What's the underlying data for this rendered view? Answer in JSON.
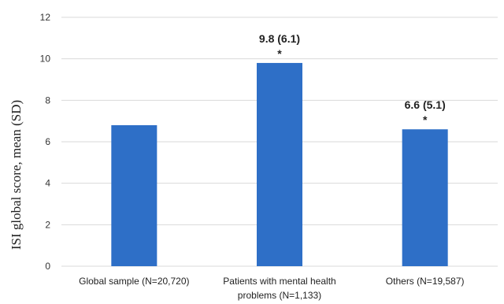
{
  "chart_data": {
    "type": "bar",
    "ylabel": "ISI global score, mean (SD)",
    "ylim": [
      0,
      12
    ],
    "yticks": [
      0,
      2,
      4,
      6,
      8,
      10,
      12
    ],
    "grid": true,
    "bar_color": "#2e6fc7",
    "categories": [
      {
        "lines": [
          "Global sample (N=20,720)"
        ]
      },
      {
        "lines": [
          "Patients with mental health",
          "problems (N=1,133)"
        ]
      },
      {
        "lines": [
          "Others (N=19,587)"
        ]
      }
    ],
    "values": [
      6.8,
      9.8,
      6.6
    ],
    "data_labels": [
      "",
      "9.8 (6.1)",
      "6.6 (5.1)"
    ],
    "significance_markers": [
      "",
      "*",
      "*"
    ]
  }
}
